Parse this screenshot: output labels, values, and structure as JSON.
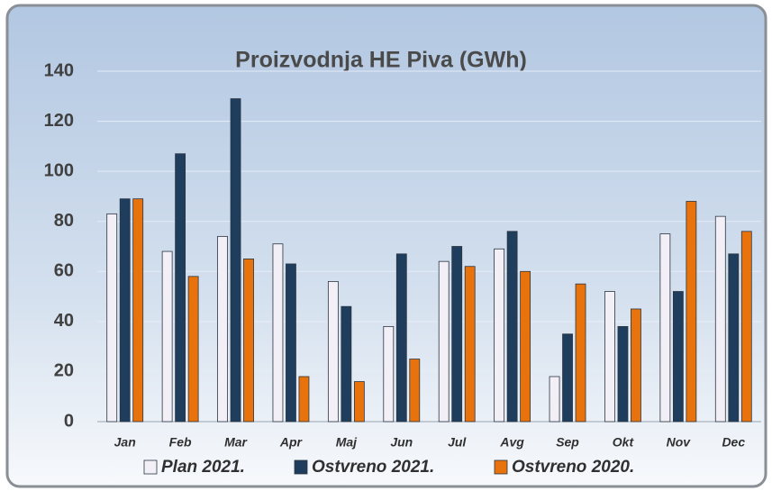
{
  "chart_data": {
    "type": "bar",
    "title": "Proizvodnja HE Piva  (GWh)",
    "categories": [
      "Jan",
      "Feb",
      "Mar",
      "Apr",
      "Maj",
      "Jun",
      "Jul",
      "Avg",
      "Sep",
      "Okt",
      "Nov",
      "Dec"
    ],
    "series": [
      {
        "name": "Plan 2021.",
        "color": "#f3eff6",
        "values": [
          83,
          68,
          74,
          71,
          56,
          38,
          64,
          69,
          18,
          52,
          75,
          82
        ]
      },
      {
        "name": "Ostvreno 2021.",
        "color": "#1f3d5c",
        "values": [
          89,
          107,
          129,
          63,
          46,
          67,
          70,
          76,
          35,
          38,
          52,
          67
        ]
      },
      {
        "name": "Ostvreno 2020.",
        "color": "#e8730c",
        "values": [
          89,
          58,
          65,
          18,
          16,
          25,
          62,
          60,
          55,
          45,
          88,
          76
        ]
      }
    ],
    "ylim": [
      0,
      140
    ],
    "yticks": [
      0,
      20,
      40,
      60,
      80,
      100,
      120,
      140
    ],
    "grid": true
  }
}
